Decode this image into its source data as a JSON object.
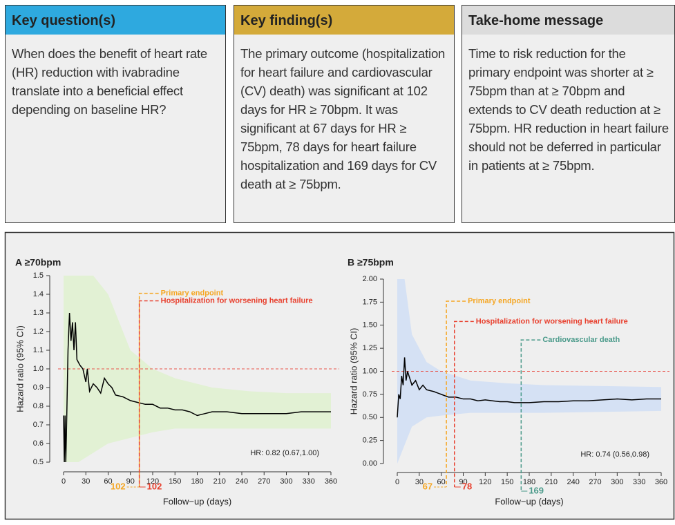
{
  "panels": [
    {
      "title": "Key question(s)",
      "color": "#2ea9df",
      "text": "When does the benefit of heart rate (HR) reduction with ivabradine translate into a beneficial effect depending on baseline HR?"
    },
    {
      "title": "Key finding(s)",
      "color": "#d4aa3a",
      "text": "The primary outcome (hospitalization for heart failure and cardiovascular (CV) death) was significant at 102 days for HR ≥ 70bpm. It was significant at 67 days for HR ≥ 75bpm, 78 days for heart failure hospitalization and 169 days for CV death at ≥ 75bpm."
    },
    {
      "title": "Take-home message",
      "color": "#dcdcdc",
      "text": "Time to risk reduction for the primary endpoint was shorter at ≥ 75bpm than at ≥ 70bpm and extends to CV death reduction at ≥ 75bpm. HR reduction in heart failure should not be deferred in particular in patients at ≥ 75bpm."
    }
  ],
  "chart_data": [
    {
      "type": "line",
      "title": "A ≥70bpm",
      "xlabel": "Follow−up (days)",
      "ylabel": "Hazard ratio (95% CI)",
      "hr_text": "HR: 0.82 (0.67,1.00)",
      "xlim": [
        0,
        360
      ],
      "xticks": [
        0,
        30,
        60,
        90,
        120,
        150,
        180,
        210,
        240,
        270,
        300,
        330,
        360
      ],
      "ylim": [
        0.5,
        1.5
      ],
      "yticks": [
        0.5,
        0.6,
        0.7,
        0.8,
        0.9,
        {
          "value": 1,
          "label": "1.0"
        },
        1.1,
        1.2,
        1.3,
        1.4,
        1.5
      ],
      "reference_y": 1,
      "reference_color": "#e8534a",
      "x": [
        0,
        1,
        2,
        3,
        4,
        6,
        8,
        10,
        12,
        14,
        16,
        18,
        22,
        26,
        30,
        32,
        35,
        40,
        45,
        50,
        55,
        60,
        65,
        70,
        80,
        90,
        100,
        110,
        120,
        130,
        140,
        150,
        160,
        170,
        180,
        190,
        200,
        220,
        240,
        260,
        280,
        300,
        320,
        340,
        360
      ],
      "values": [
        0.75,
        0.5,
        0.75,
        0.5,
        0.68,
        1.1,
        1.3,
        1.15,
        1.25,
        1.1,
        1.25,
        1.05,
        1.02,
        1.0,
        0.93,
        1.0,
        0.88,
        0.92,
        0.9,
        0.87,
        0.95,
        0.92,
        0.9,
        0.86,
        0.85,
        0.83,
        0.82,
        0.81,
        0.81,
        0.79,
        0.79,
        0.78,
        0.78,
        0.77,
        0.75,
        0.76,
        0.77,
        0.77,
        0.76,
        0.76,
        0.76,
        0.76,
        0.77,
        0.77,
        0.77
      ],
      "color": "#000000",
      "band": {
        "color": "#e2f1d4",
        "x": [
          0,
          20,
          40,
          60,
          90,
          120,
          150,
          200,
          250,
          300,
          360
        ],
        "upper": [
          1.5,
          1.5,
          1.5,
          1.4,
          1.1,
          1.0,
          0.95,
          0.9,
          0.88,
          0.87,
          0.87
        ],
        "lower": [
          0.5,
          0.5,
          0.55,
          0.6,
          0.63,
          0.66,
          0.68,
          0.68,
          0.68,
          0.68,
          0.68
        ]
      },
      "annotations": [
        {
          "x": 102,
          "label": "Primary endpoint",
          "color": "#f5a623"
        },
        {
          "x": 102,
          "label": "Hospitalization for worsening heart failure",
          "color": "#e8402e"
        }
      ]
    },
    {
      "type": "line",
      "title": "B ≥75bpm",
      "xlabel": "Follow−up (days)",
      "ylabel": "Hazard ratio (95% CI)",
      "hr_text": "HR: 0.74 (0.56,0.98)",
      "xlim": [
        0,
        360
      ],
      "xticks": [
        0,
        30,
        60,
        90,
        120,
        150,
        180,
        210,
        240,
        270,
        300,
        330,
        360
      ],
      "ylim": [
        0,
        2
      ],
      "yticks": [
        {
          "value": 0,
          "label": "0.00"
        },
        0.25,
        {
          "value": 0.5,
          "label": "0.50"
        },
        0.75,
        {
          "value": 1,
          "label": "1.00"
        },
        1.25,
        {
          "value": 1.5,
          "label": "1.50"
        },
        1.75,
        {
          "value": 2,
          "label": "2.00"
        }
      ],
      "reference_y": 1,
      "reference_color": "#e8534a",
      "x": [
        0,
        2,
        4,
        6,
        8,
        10,
        12,
        14,
        16,
        20,
        25,
        30,
        35,
        40,
        50,
        60,
        70,
        80,
        90,
        100,
        110,
        120,
        130,
        140,
        150,
        160,
        170,
        180,
        200,
        220,
        240,
        260,
        280,
        300,
        320,
        340,
        360
      ],
      "values": [
        0.5,
        0.75,
        0.7,
        0.95,
        0.85,
        1.15,
        0.9,
        1.0,
        0.95,
        0.85,
        0.9,
        0.8,
        0.85,
        0.8,
        0.78,
        0.75,
        0.72,
        0.72,
        0.7,
        0.7,
        0.68,
        0.69,
        0.68,
        0.67,
        0.67,
        0.66,
        0.66,
        0.66,
        0.67,
        0.67,
        0.68,
        0.68,
        0.69,
        0.7,
        0.69,
        0.7,
        0.7
      ],
      "color": "#000000",
      "band": {
        "color": "#d5e1f4",
        "x": [
          0,
          10,
          20,
          40,
          60,
          100,
          150,
          200,
          280,
          360
        ],
        "upper": [
          2,
          2,
          1.4,
          1.1,
          1.0,
          0.9,
          0.87,
          0.85,
          0.84,
          0.83
        ],
        "lower": [
          0,
          0.2,
          0.4,
          0.5,
          0.52,
          0.55,
          0.55,
          0.55,
          0.56,
          0.57
        ]
      },
      "annotations": [
        {
          "x": 67,
          "label": "Primary endpoint",
          "color": "#f5a623"
        },
        {
          "x": 78,
          "label": "Hospitalization for worsening heart failure",
          "color": "#e8402e"
        },
        {
          "x": 169,
          "label": "Cardiovascular death",
          "color": "#4a9a8a"
        }
      ]
    }
  ]
}
